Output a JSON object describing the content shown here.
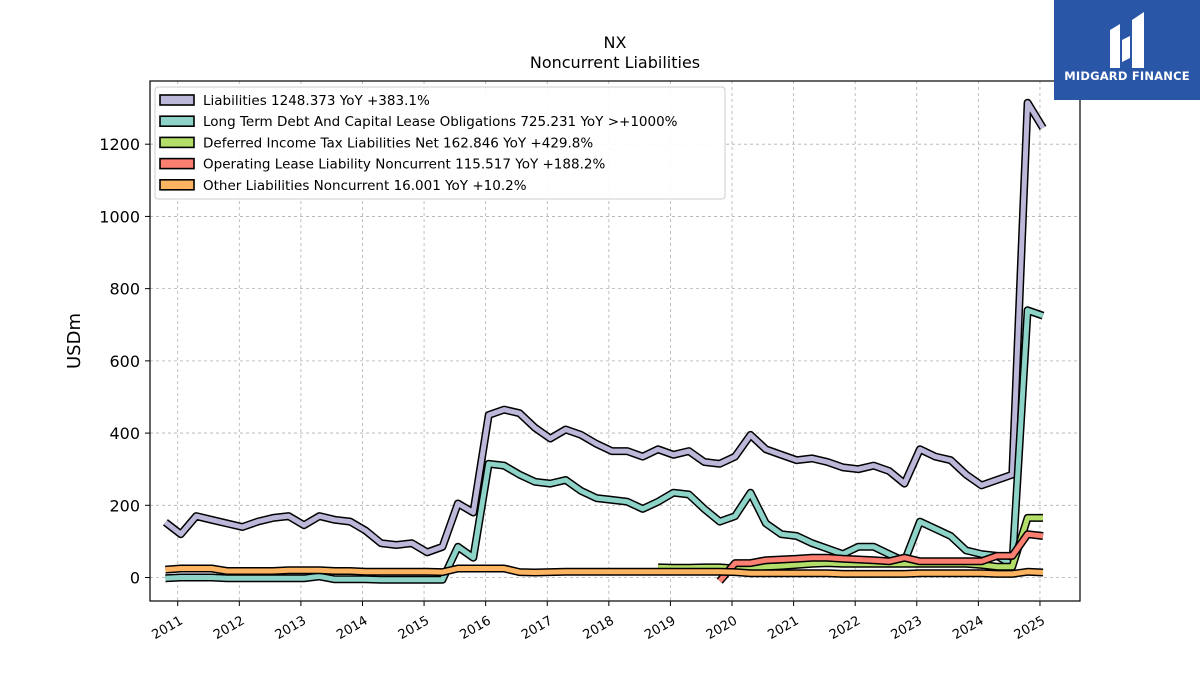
{
  "brand": {
    "name": "MIDGARD FINANCE",
    "logo_icon": "midgard-logo-icon",
    "bg": "#2a56a8"
  },
  "chart_data": {
    "type": "line",
    "title": "NX",
    "subtitle": "Noncurrent  Liabilities",
    "xlabel": "",
    "ylabel": "USDm",
    "xlim": [
      2010.55,
      2025.65
    ],
    "ylim": [
      -65,
      1375
    ],
    "yticks": [
      0,
      200,
      400,
      600,
      800,
      1000,
      1200
    ],
    "xticks": [
      "2011",
      "2012",
      "2013",
      "2014",
      "2015",
      "2016",
      "2017",
      "2018",
      "2019",
      "2020",
      "2021",
      "2022",
      "2023",
      "2024",
      "2025"
    ],
    "grid": true,
    "legend_position": "top-left",
    "series": [
      {
        "name": "Liabilities",
        "legend": "Liabilities  1248.373 YoY +383.1%",
        "color": "#bcb8da",
        "x": [
          2010.8,
          2011.05,
          2011.3,
          2011.55,
          2011.8,
          2012.05,
          2012.3,
          2012.55,
          2012.8,
          2013.05,
          2013.3,
          2013.55,
          2013.8,
          2014.05,
          2014.3,
          2014.55,
          2014.8,
          2015.05,
          2015.3,
          2015.55,
          2015.8,
          2016.05,
          2016.3,
          2016.55,
          2016.8,
          2017.05,
          2017.3,
          2017.55,
          2017.8,
          2018.05,
          2018.3,
          2018.55,
          2018.8,
          2019.05,
          2019.3,
          2019.55,
          2019.8,
          2020.05,
          2020.3,
          2020.55,
          2020.8,
          2021.05,
          2021.3,
          2021.55,
          2021.8,
          2022.05,
          2022.3,
          2022.55,
          2022.8,
          2023.05,
          2023.3,
          2023.55,
          2023.8,
          2024.05,
          2024.3,
          2024.55,
          2024.8,
          2025.05
        ],
        "y": [
          153,
          120,
          170,
          160,
          150,
          140,
          155,
          165,
          170,
          145,
          170,
          160,
          155,
          130,
          95,
          90,
          95,
          70,
          85,
          205,
          180,
          450,
          465,
          455,
          415,
          385,
          410,
          395,
          370,
          350,
          350,
          335,
          355,
          340,
          350,
          320,
          315,
          335,
          395,
          355,
          340,
          325,
          330,
          320,
          305,
          300,
          310,
          295,
          260,
          355,
          335,
          325,
          285,
          255,
          270,
          285,
          1315,
          1245
        ]
      },
      {
        "name": "Long Term Debt And Capital Lease Obligations",
        "legend": "Long Term Debt And Capital Lease Obligations  725.231 YoY >+1000%",
        "color": "#8dd3c7",
        "x": [
          2010.8,
          2011.05,
          2011.3,
          2011.55,
          2011.8,
          2012.05,
          2012.3,
          2012.55,
          2012.8,
          2013.05,
          2013.3,
          2013.55,
          2013.8,
          2014.05,
          2014.3,
          2014.55,
          2014.8,
          2015.05,
          2015.3,
          2015.55,
          2015.8,
          2016.05,
          2016.3,
          2016.55,
          2016.8,
          2017.05,
          2017.3,
          2017.55,
          2017.8,
          2018.05,
          2018.3,
          2018.55,
          2018.8,
          2019.05,
          2019.3,
          2019.55,
          2019.8,
          2020.05,
          2020.3,
          2020.55,
          2020.8,
          2021.05,
          2021.3,
          2021.55,
          2021.8,
          2022.05,
          2022.3,
          2022.55,
          2022.8,
          2023.05,
          2023.3,
          2023.55,
          2023.8,
          2024.05,
          2024.3,
          2024.55,
          2024.8,
          2025.05
        ],
        "y": [
          -2,
          0,
          0,
          0,
          -2,
          -2,
          -2,
          -2,
          -2,
          -2,
          3,
          -5,
          -5,
          -5,
          -6,
          -6,
          -6,
          -6,
          -6,
          85,
          55,
          315,
          310,
          285,
          265,
          260,
          270,
          240,
          220,
          215,
          210,
          190,
          210,
          235,
          230,
          190,
          155,
          170,
          235,
          150,
          120,
          115,
          95,
          80,
          65,
          85,
          85,
          65,
          45,
          155,
          135,
          115,
          75,
          65,
          60,
          35,
          740,
          725
        ]
      },
      {
        "name": "Deferred Income Tax Liabilities Net",
        "legend": "Deferred Income Tax Liabilities Net  162.846 YoY +429.8%",
        "color": "#b3de69",
        "x": [
          2018.8,
          2019.05,
          2019.3,
          2019.55,
          2019.8,
          2020.05,
          2020.3,
          2020.55,
          2020.8,
          2021.05,
          2021.3,
          2021.55,
          2021.8,
          2022.05,
          2022.3,
          2022.55,
          2022.8,
          2023.05,
          2023.3,
          2023.55,
          2023.8,
          2024.05,
          2024.3,
          2024.55,
          2024.8,
          2025.05
        ],
        "y": [
          28,
          27,
          27,
          28,
          28,
          25,
          25,
          30,
          32,
          35,
          38,
          40,
          38,
          38,
          38,
          38,
          38,
          38,
          38,
          38,
          38,
          35,
          30,
          30,
          165,
          165
        ]
      },
      {
        "name": "Operating Lease Liability Noncurrent",
        "legend": "Operating Lease Liability Noncurrent  115.517 YoY +188.2%",
        "color": "#fb8072",
        "x": [
          2019.8,
          2020.05,
          2020.3,
          2020.55,
          2020.8,
          2021.05,
          2021.3,
          2021.55,
          2021.8,
          2022.05,
          2022.3,
          2022.55,
          2022.8,
          2023.05,
          2023.3,
          2023.55,
          2023.8,
          2024.05,
          2024.3,
          2024.55,
          2024.8,
          2025.05
        ],
        "y": [
          -10,
          40,
          40,
          48,
          50,
          52,
          55,
          55,
          52,
          50,
          48,
          45,
          55,
          45,
          45,
          45,
          45,
          45,
          60,
          60,
          120,
          115
        ]
      },
      {
        "name": "Other Liabilities Noncurrent",
        "legend": "Other Liabilities Noncurrent  16.001 YoY +10.2%",
        "color": "#fdb462",
        "x": [
          2010.8,
          2011.05,
          2011.3,
          2011.55,
          2011.8,
          2012.05,
          2012.3,
          2012.55,
          2012.8,
          2013.05,
          2013.3,
          2013.55,
          2013.8,
          2014.05,
          2014.3,
          2014.55,
          2014.8,
          2015.05,
          2015.3,
          2015.55,
          2015.8,
          2016.05,
          2016.3,
          2016.55,
          2016.8,
          2017.05,
          2017.3,
          2017.55,
          2017.8,
          2018.05,
          2018.3,
          2018.55,
          2018.8,
          2019.05,
          2019.3,
          2019.55,
          2019.8,
          2020.05,
          2020.3,
          2020.55,
          2020.8,
          2021.05,
          2021.3,
          2021.55,
          2021.8,
          2022.05,
          2022.3,
          2022.55,
          2022.8,
          2023.05,
          2023.3,
          2023.55,
          2023.8,
          2024.05,
          2024.3,
          2024.55,
          2024.8,
          2025.05
        ],
        "y": [
          22,
          25,
          25,
          25,
          18,
          18,
          18,
          18,
          20,
          20,
          20,
          18,
          18,
          16,
          16,
          16,
          16,
          16,
          15,
          25,
          25,
          25,
          25,
          15,
          14,
          15,
          16,
          16,
          16,
          16,
          16,
          16,
          16,
          16,
          16,
          16,
          16,
          15,
          12,
          12,
          12,
          12,
          12,
          12,
          10,
          10,
          10,
          10,
          10,
          12,
          12,
          12,
          12,
          12,
          10,
          10,
          16,
          14
        ]
      }
    ]
  }
}
